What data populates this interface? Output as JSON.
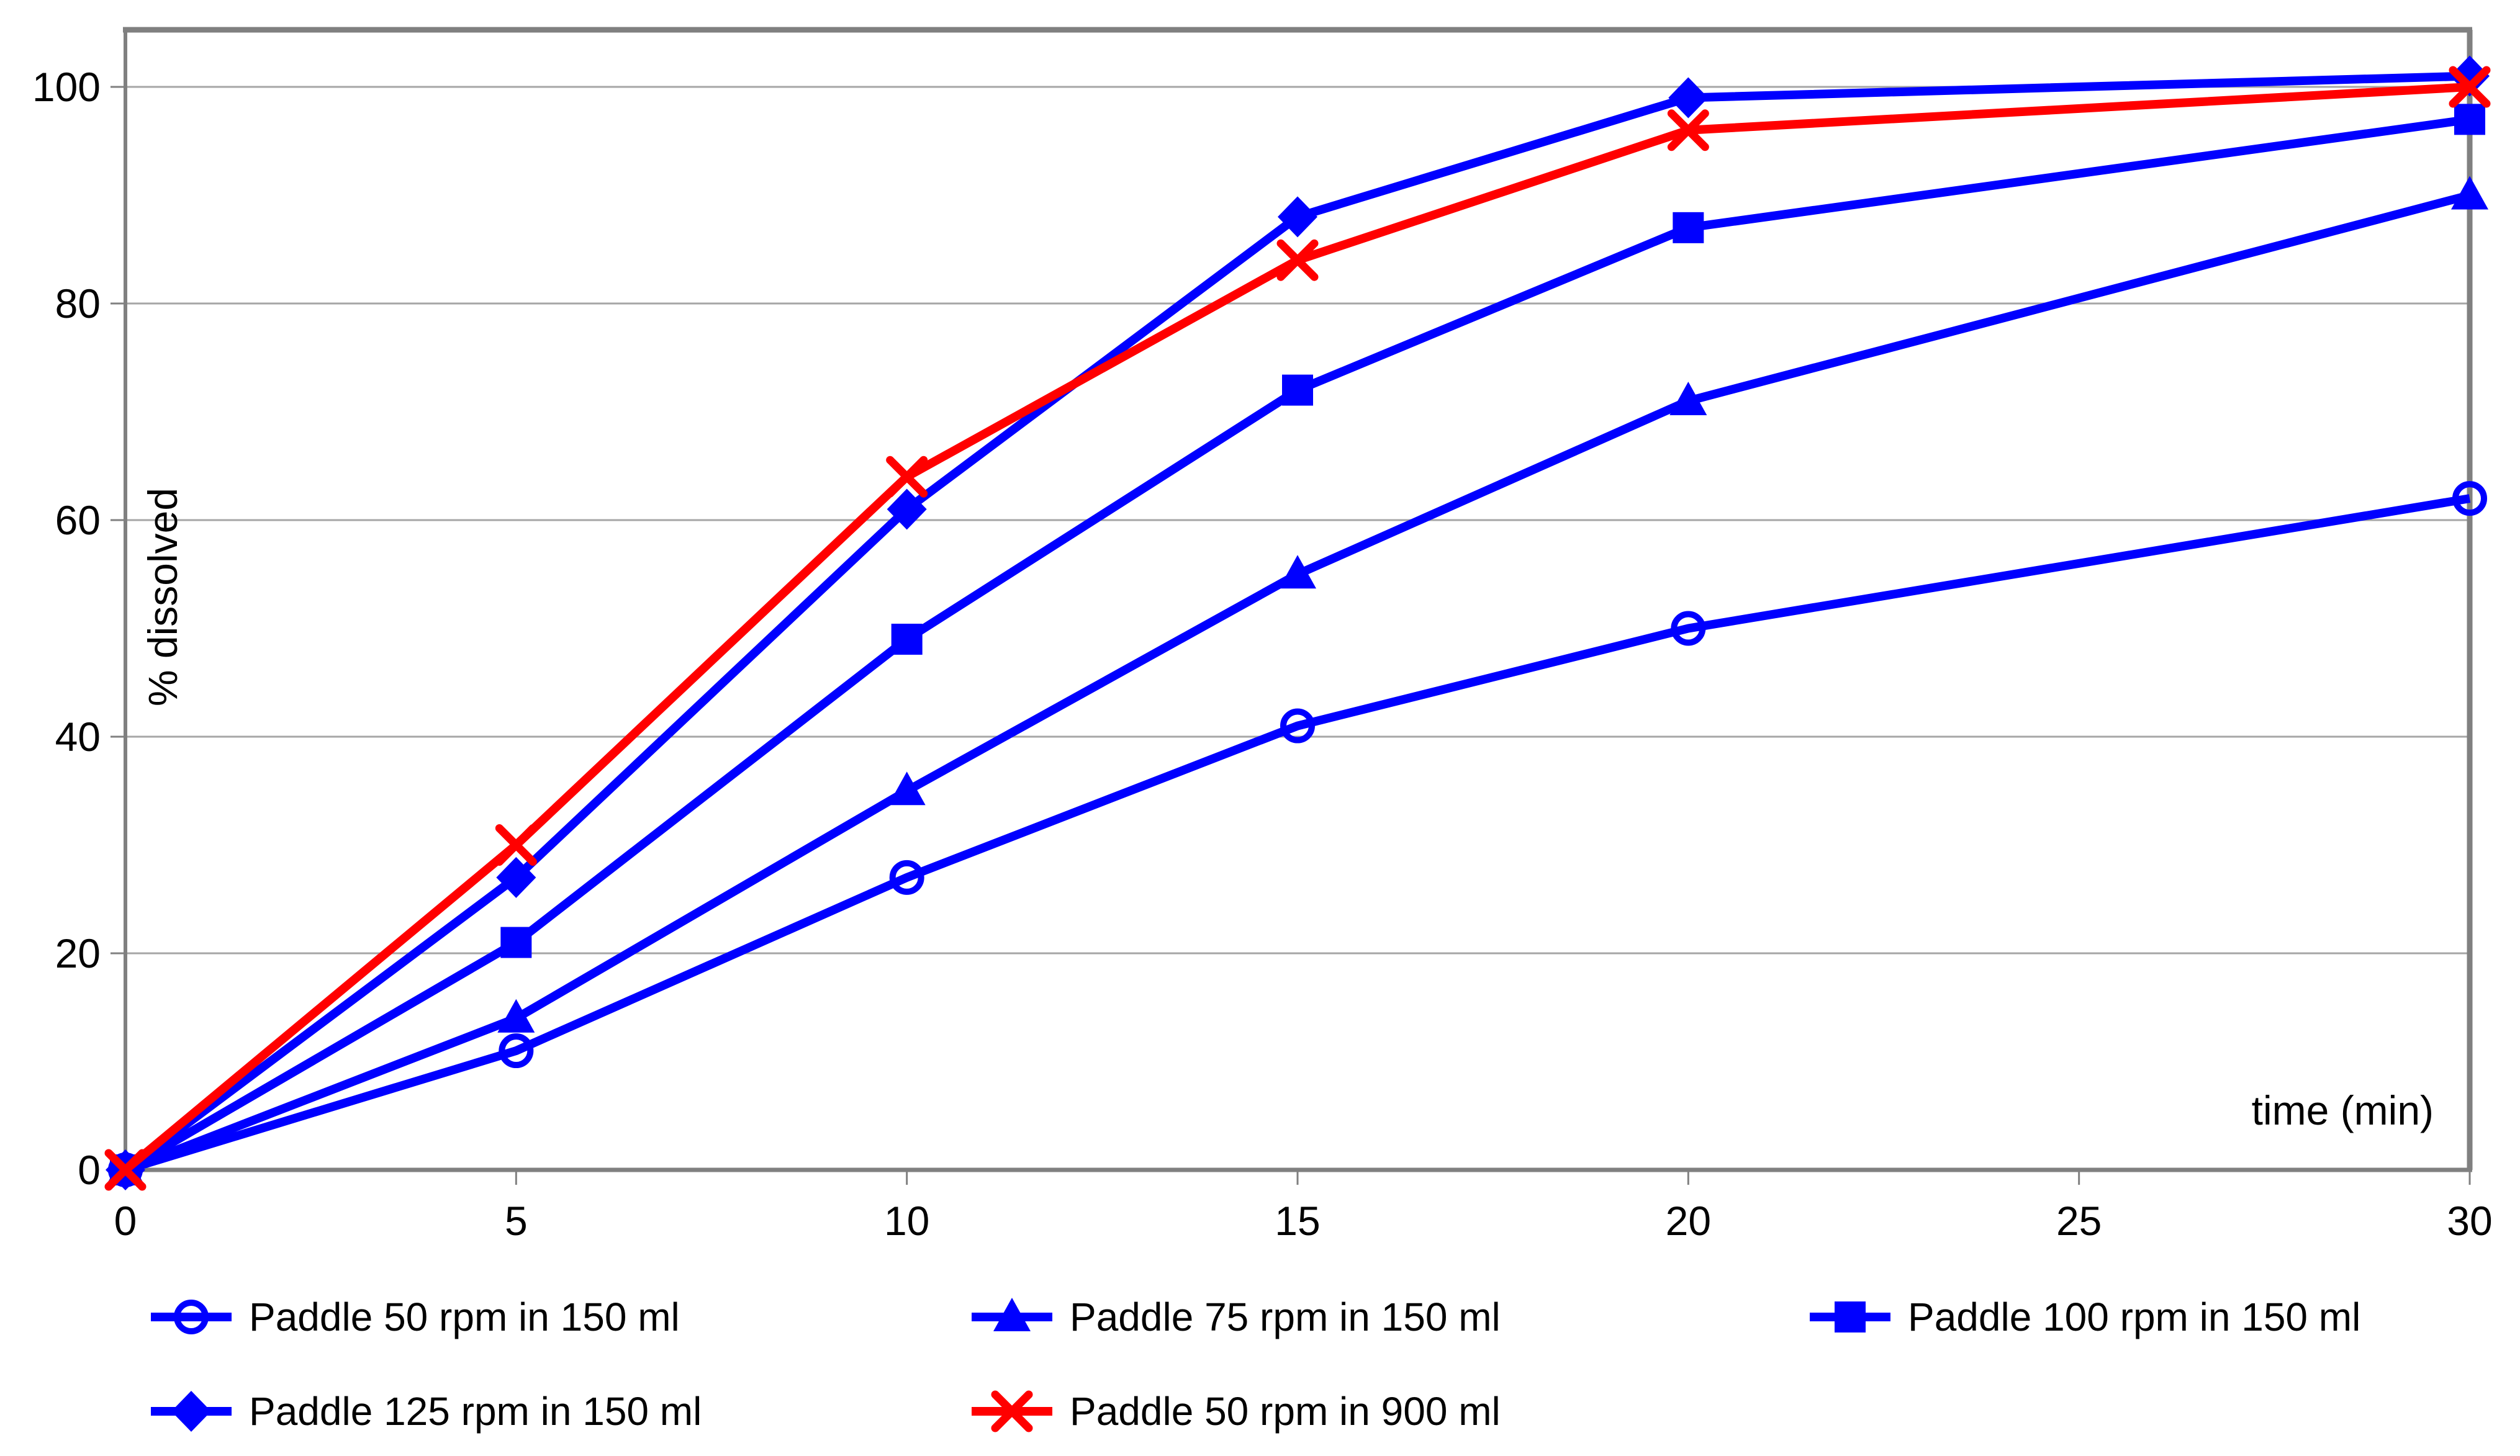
{
  "chart_data": {
    "type": "line",
    "title": "",
    "xlabel": "time (min)",
    "ylabel": "% dissolved",
    "x": [
      0,
      5,
      10,
      15,
      20,
      30
    ],
    "xlim": [
      0,
      30
    ],
    "ylim": [
      0,
      100
    ],
    "xticks": [
      0,
      5,
      10,
      15,
      20,
      25,
      30
    ],
    "yticks": [
      0,
      20,
      40,
      60,
      80,
      100
    ],
    "grid": "horizontal-only",
    "legend_position": "bottom",
    "series": [
      {
        "name": "Paddle 50 rpm in 150 ml",
        "color": "#0000FF",
        "marker": "circle-open",
        "values": [
          0,
          11,
          27,
          41,
          50,
          62
        ]
      },
      {
        "name": "Paddle 75 rpm in 150 ml",
        "color": "#0000FF",
        "marker": "triangle",
        "values": [
          0,
          14,
          35,
          55,
          71,
          90
        ]
      },
      {
        "name": "Paddle 100 rpm in 150 ml",
        "color": "#0000FF",
        "marker": "square",
        "values": [
          0,
          21,
          49,
          72,
          87,
          97
        ]
      },
      {
        "name": "Paddle 125 rpm in 150 ml",
        "color": "#0000FF",
        "marker": "diamond",
        "values": [
          0,
          27,
          61,
          88,
          99,
          101
        ]
      },
      {
        "name": "Paddle 50 rpm in 900 ml",
        "color": "#FF0000",
        "marker": "x",
        "values": [
          0,
          30,
          64,
          84,
          96,
          100
        ]
      }
    ],
    "colors": {
      "blue": "#0000FF",
      "red": "#FF0000",
      "grid": "#A6A6A6",
      "axis": "#808080",
      "text": "#000000",
      "background": "#FFFFFF"
    }
  }
}
